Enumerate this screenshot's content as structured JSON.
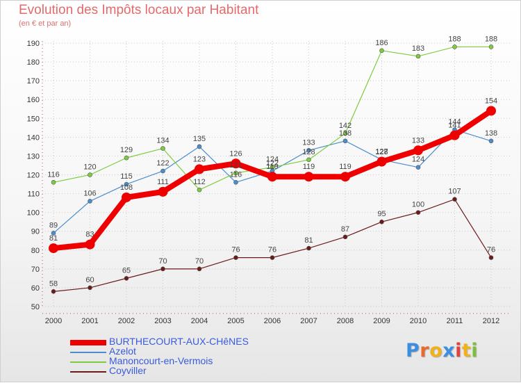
{
  "title": "Evolution des Impôts locaux par Habitant",
  "subtitle": "(en € et par an)",
  "logo": {
    "letters": [
      "P",
      "r",
      "o",
      "x",
      "i",
      "t",
      "i"
    ],
    "colors": [
      "#3b8ee0",
      "#e86a2c",
      "#f0b21c",
      "#3b8ee0",
      "#e04040",
      "#f0b21c",
      "#7bbf3a"
    ]
  },
  "chart_data": {
    "type": "line",
    "title": "Evolution des Impôts locaux par Habitant",
    "subtitle": "(en € et par an)",
    "xlabel": "",
    "ylabel": "",
    "ylim": [
      50,
      190
    ],
    "yticks": [
      50,
      60,
      70,
      80,
      90,
      100,
      110,
      120,
      130,
      140,
      150,
      160,
      170,
      180,
      190
    ],
    "x": [
      2000,
      2001,
      2002,
      2003,
      2004,
      2005,
      2006,
      2007,
      2008,
      2009,
      2010,
      2011,
      2012
    ],
    "legend_position": "bottom-left",
    "series": [
      {
        "name": "BURTHECOURT-AUX-CHêNES",
        "color": "#ee0000",
        "width": 8,
        "marker": 7,
        "values": [
          81,
          83,
          108,
          111,
          123,
          126,
          119,
          119,
          119,
          127,
          133,
          141,
          154
        ],
        "labels": [
          "81",
          "83",
          "108",
          "111",
          "123",
          "126",
          "119",
          "119",
          "119",
          "127",
          "133",
          "141",
          "154"
        ]
      },
      {
        "name": "Azelot",
        "color": "#4a8ecf",
        "width": 1.2,
        "marker": 3,
        "values": [
          89,
          106,
          115,
          122,
          135,
          116,
          122,
          133,
          138,
          128,
          124,
          144,
          138
        ],
        "labels": [
          "89",
          "106",
          "115",
          "122",
          "135",
          "116",
          "122",
          "133",
          "138",
          "128",
          "124",
          "144",
          "138"
        ]
      },
      {
        "name": "Manoncourt-en-Vermois",
        "color": "#7dcc3f",
        "width": 1.2,
        "marker": 3,
        "values": [
          116,
          120,
          129,
          134,
          112,
          121,
          124,
          128,
          142,
          186,
          183,
          188,
          188
        ],
        "labels": [
          "116",
          "120",
          "129",
          "134",
          "112",
          "121",
          "124",
          "128",
          "142",
          "186",
          "183",
          "188",
          "188"
        ]
      },
      {
        "name": "Coyviller",
        "color": "#6b1a1a",
        "width": 1.2,
        "marker": 3,
        "values": [
          58,
          60,
          65,
          70,
          70,
          76,
          76,
          81,
          87,
          95,
          100,
          107,
          76
        ],
        "labels": [
          "58",
          "60",
          "65",
          "70",
          "70",
          "76",
          "76",
          "81",
          "87",
          "95",
          "100",
          "107",
          "76"
        ]
      }
    ]
  }
}
